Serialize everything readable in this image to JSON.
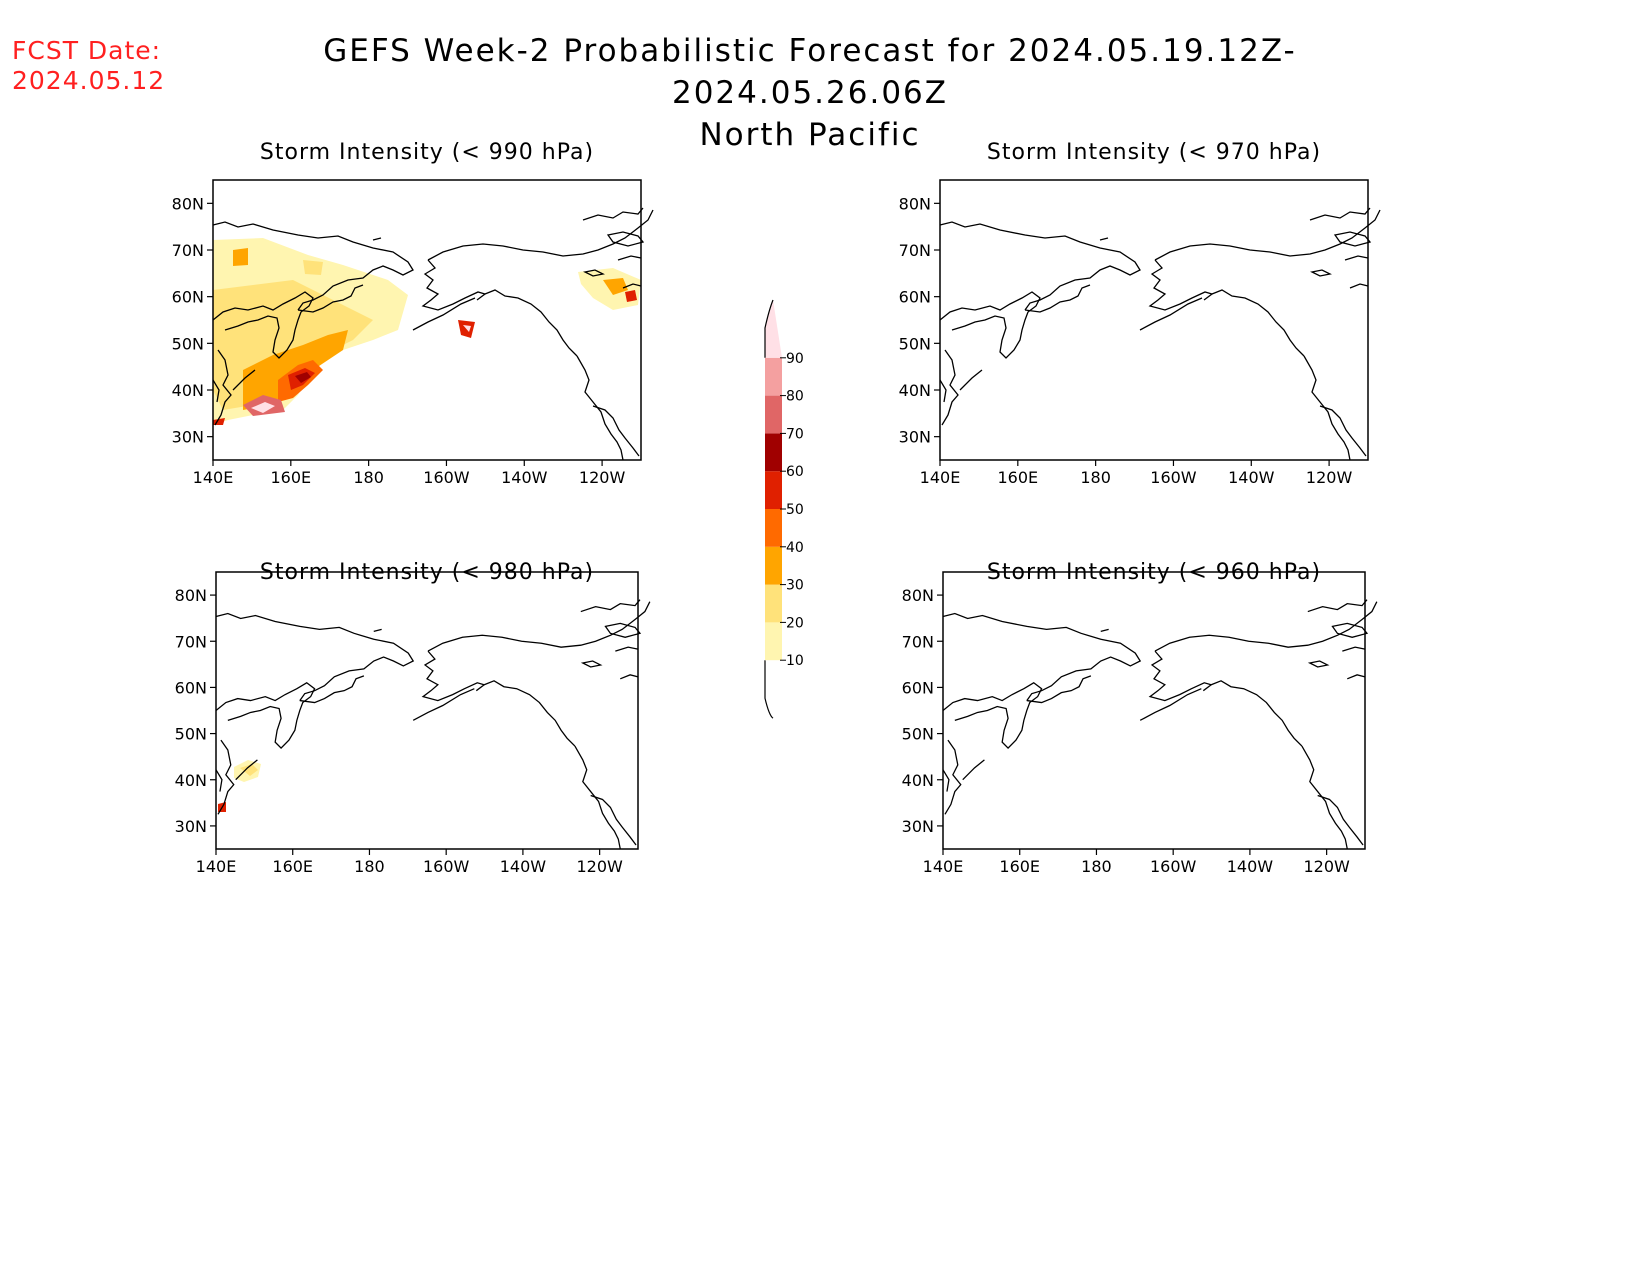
{
  "forecast_date": {
    "label": "FCST Date:",
    "value": "2024.05.12"
  },
  "title": {
    "line1": "GEFS Week-2 Probabilistic Forecast for 2024.05.19.12Z-2024.05.26.06Z",
    "line2": "North Pacific"
  },
  "axes": {
    "lat_ticks": [
      "80N",
      "70N",
      "60N",
      "50N",
      "40N",
      "30N"
    ],
    "lat_values": [
      80,
      70,
      60,
      50,
      40,
      30
    ],
    "lon_ticks": [
      "140E",
      "160E",
      "180",
      "160W",
      "140W",
      "120W"
    ],
    "lon_values": [
      140,
      160,
      180,
      200,
      220,
      240
    ],
    "lat_range": [
      25,
      85
    ],
    "lon_range": [
      140,
      250
    ]
  },
  "panels": [
    {
      "id": "p990",
      "title": "Storm Intensity (< 990 hPa)"
    },
    {
      "id": "p970",
      "title": "Storm Intensity (< 970 hPa)"
    },
    {
      "id": "p980",
      "title": "Storm Intensity (< 980 hPa)"
    },
    {
      "id": "p960",
      "title": "Storm Intensity (< 960 hPa)"
    }
  ],
  "colorbar": {
    "levels": [
      "10",
      "20",
      "30",
      "40",
      "50",
      "60",
      "70",
      "80",
      "90"
    ],
    "colors": [
      "#fff5b0",
      "#ffe27a",
      "#ffa500",
      "#ff6a00",
      "#e02000",
      "#a00000",
      "#e06666",
      "#f4a0a0",
      "#ffe0e6"
    ]
  }
}
